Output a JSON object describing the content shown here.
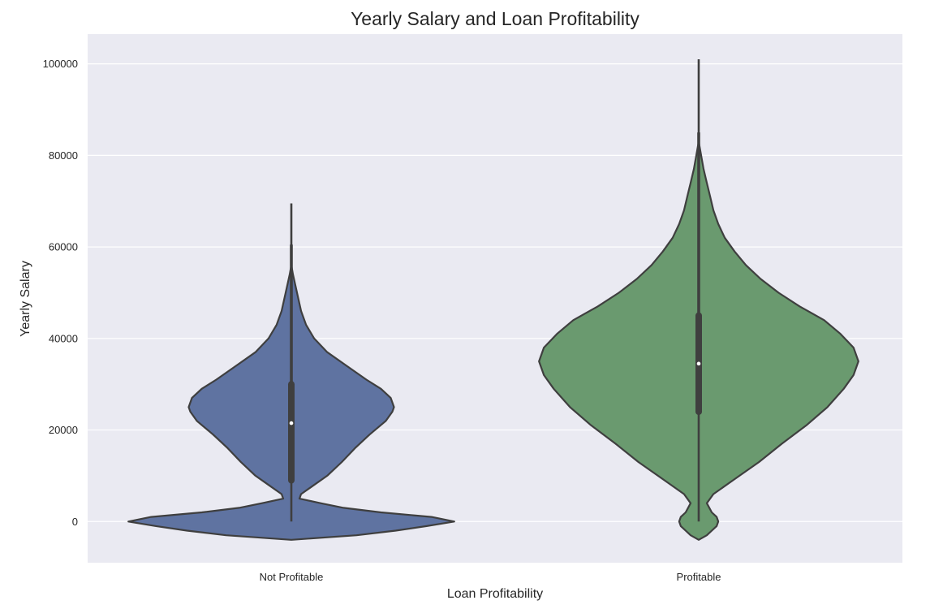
{
  "chart_data": {
    "type": "violin",
    "title": "Yearly Salary and Loan Profitability",
    "xlabel": "Loan Profitability",
    "ylabel": "Yearly Salary",
    "ylim": [
      -9000,
      106500
    ],
    "yticks": [
      0,
      20000,
      40000,
      60000,
      80000,
      100000
    ],
    "grid": true,
    "background": "#eaeaf2",
    "categories": [
      "Not Profitable",
      "Profitable"
    ],
    "series": [
      {
        "category": "Not Profitable",
        "color": "#5f73a1",
        "quartiles": {
          "min": 0,
          "q1": 9000,
          "median": 21500,
          "q3": 30000,
          "max": 69500
        },
        "whisker_inner_top": 60500,
        "density_profile": [
          [
            -4000,
            0.0
          ],
          [
            -3000,
            0.4
          ],
          [
            -2000,
            0.64
          ],
          [
            -1000,
            0.83
          ],
          [
            0,
            1.0
          ],
          [
            1000,
            0.86
          ],
          [
            2000,
            0.55
          ],
          [
            3000,
            0.32
          ],
          [
            4000,
            0.18
          ],
          [
            5000,
            0.05
          ],
          [
            6000,
            0.06
          ],
          [
            8000,
            0.14
          ],
          [
            10000,
            0.22
          ],
          [
            13000,
            0.31
          ],
          [
            16000,
            0.39
          ],
          [
            19000,
            0.48
          ],
          [
            22000,
            0.58
          ],
          [
            24000,
            0.62
          ],
          [
            25000,
            0.63
          ],
          [
            27000,
            0.61
          ],
          [
            29000,
            0.55
          ],
          [
            31000,
            0.46
          ],
          [
            34000,
            0.34
          ],
          [
            37000,
            0.22
          ],
          [
            40000,
            0.14
          ],
          [
            43000,
            0.09
          ],
          [
            46000,
            0.06
          ],
          [
            50000,
            0.035
          ],
          [
            54000,
            0.01
          ],
          [
            56000,
            0.0
          ]
        ]
      },
      {
        "category": "Profitable",
        "color": "#6a9a6f",
        "quartiles": {
          "min": 0,
          "q1": 24000,
          "median": 34500,
          "q3": 45000,
          "max": 101000
        },
        "whisker_inner_top": 85000,
        "density_profile": [
          [
            -4000,
            0.0
          ],
          [
            -3000,
            0.05
          ],
          [
            -2000,
            0.08
          ],
          [
            -1000,
            0.11
          ],
          [
            0,
            0.12
          ],
          [
            1000,
            0.11
          ],
          [
            2000,
            0.08
          ],
          [
            4000,
            0.05
          ],
          [
            6000,
            0.09
          ],
          [
            9000,
            0.21
          ],
          [
            13000,
            0.37
          ],
          [
            17000,
            0.51
          ],
          [
            21000,
            0.66
          ],
          [
            25000,
            0.79
          ],
          [
            29000,
            0.89
          ],
          [
            32000,
            0.95
          ],
          [
            35000,
            0.98
          ],
          [
            38000,
            0.95
          ],
          [
            41000,
            0.87
          ],
          [
            44000,
            0.77
          ],
          [
            47000,
            0.62
          ],
          [
            50000,
            0.49
          ],
          [
            53000,
            0.38
          ],
          [
            56000,
            0.29
          ],
          [
            59000,
            0.22
          ],
          [
            62000,
            0.16
          ],
          [
            65000,
            0.12
          ],
          [
            68000,
            0.09
          ],
          [
            71000,
            0.07
          ],
          [
            74000,
            0.05
          ],
          [
            77000,
            0.03
          ],
          [
            80000,
            0.015
          ],
          [
            83000,
            0.0
          ]
        ]
      }
    ]
  }
}
